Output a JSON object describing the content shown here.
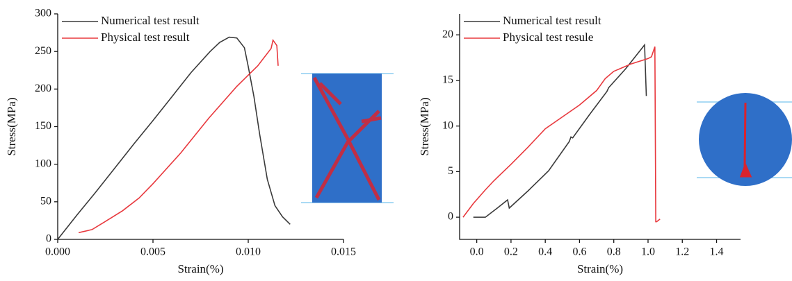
{
  "chart_data": [
    {
      "type": "line",
      "x_label": "Strain(%)",
      "y_label": "Stress(MPa)",
      "xlim": [
        0,
        0.015
      ],
      "ylim": [
        0,
        300
      ],
      "xticks": [
        {
          "value": 0,
          "label": "0.000"
        },
        0.005,
        {
          "value": 0.01,
          "label": "0.010"
        },
        0.015
      ],
      "yticks": [
        0,
        50,
        100,
        150,
        200,
        250,
        300
      ],
      "legend": "upper left",
      "series": [
        {
          "name": "Numerical test result",
          "color": "#3a3a3a",
          "x": [
            0,
            0.001,
            0.002,
            0.003,
            0.004,
            0.005,
            0.006,
            0.007,
            0.008,
            0.0085,
            0.009,
            0.0094,
            0.0098,
            0.01,
            0.0103,
            0.0106,
            0.011,
            0.0114,
            0.0118,
            0.0122
          ],
          "values": [
            0,
            32,
            63,
            95,
            127,
            158,
            190,
            222,
            250,
            262,
            269,
            268,
            255,
            230,
            190,
            140,
            80,
            45,
            30,
            20
          ]
        },
        {
          "name": "Physical test result",
          "color": "#e8383d",
          "x": [
            0.0011,
            0.0018,
            0.00245,
            0.0034,
            0.00427,
            0.005,
            0.00646,
            0.00792,
            0.00938,
            0.0105,
            0.0112,
            0.0113,
            0.0115,
            0.01157
          ],
          "values": [
            9,
            13,
            23,
            38,
            55,
            74,
            115,
            161,
            203,
            231,
            254,
            265,
            258,
            231
          ]
        }
      ]
    },
    {
      "type": "line",
      "x_label": "Strain(%)",
      "y_label": "Stress(MPa)",
      "xlim": [
        -0.1,
        1.54
      ],
      "ylim": [
        -2.43,
        22.3
      ],
      "xticks": [
        {
          "value": 0,
          "label": "0.0"
        },
        0.2,
        0.4,
        0.6,
        0.8,
        {
          "value": 1,
          "label": "1.0"
        },
        1.2,
        1.4
      ],
      "yticks": [
        0,
        5,
        10,
        15,
        20
      ],
      "legend": "upper left",
      "series": [
        {
          "name": "Numerical test result",
          "color": "#3a3a3a",
          "x": [
            -0.02,
            0.05,
            0.12,
            0.18,
            0.19,
            0.3,
            0.42,
            0.54,
            0.55,
            0.56,
            0.66,
            0.76,
            0.77,
            0.87,
            0.98,
            0.99
          ],
          "values": [
            0,
            0,
            1,
            1.9,
            1,
            2.9,
            5.1,
            8.3,
            8.8,
            8.7,
            11.3,
            13.8,
            14.2,
            16.3,
            18.9,
            13.3
          ]
        },
        {
          "name": "Physical test resule",
          "color": "#e8383d",
          "x": [
            -0.08,
            -0.02,
            0.05,
            0.1,
            0.2,
            0.3,
            0.4,
            0.5,
            0.6,
            0.7,
            0.75,
            0.8,
            0.9,
            1,
            1.02,
            1.04,
            1.045,
            1.05,
            1.07
          ],
          "values": [
            0,
            1.5,
            3,
            4,
            5.8,
            7.7,
            9.7,
            11,
            12.3,
            13.9,
            15.2,
            16,
            16.8,
            17.4,
            17.6,
            18.7,
            -0.5,
            -0.5,
            -0.2
          ]
        }
      ]
    }
  ]
}
